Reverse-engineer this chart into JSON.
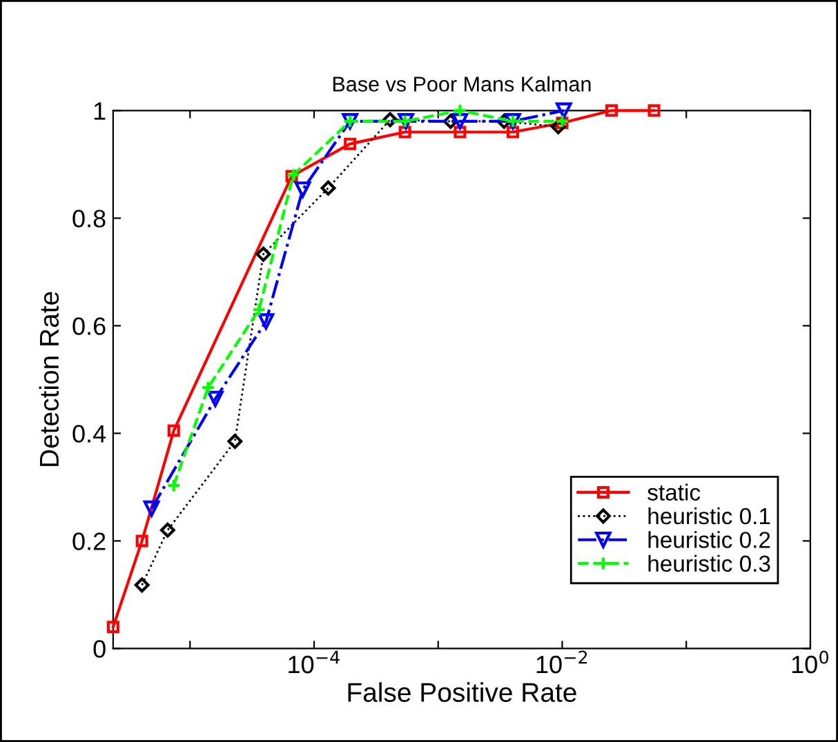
{
  "chart_data": {
    "type": "line",
    "title": "Base vs Poor Mans Kalman",
    "xlabel": "False Positive Rate",
    "ylabel": "Detection Rate",
    "log": "x",
    "xlim": [
      2.4e-06,
      1
    ],
    "xticks": [
      {
        "value": 1e-05,
        "label": null
      },
      {
        "value": 0.0001,
        "label": "10$^{−4}$"
      },
      {
        "value": 0.001,
        "label": null
      },
      {
        "value": 0.01,
        "label": "10$^{−2}$"
      },
      {
        "value": 0.1,
        "label": null
      },
      {
        "value": 1,
        "label": "10$^{0}$"
      }
    ],
    "ylim": [
      0,
      1
    ],
    "yticks": [
      0,
      0.2,
      0.4,
      0.6,
      0.8,
      1
    ],
    "grid": false,
    "legend": "bottom right",
    "series": [
      {
        "name": "static",
        "color": "#ff0000",
        "marker": "square",
        "line_style": "solid",
        "x": [
          2.4e-06,
          4.1e-06,
          7.4e-06,
          6.6e-05,
          0.000195,
          0.00054,
          0.0015,
          0.004,
          0.01,
          0.025,
          0.055
        ],
        "values": [
          0.04,
          0.2,
          0.405,
          0.878,
          0.938,
          0.96,
          0.96,
          0.96,
          0.977,
          1.0,
          1.0
        ]
      },
      {
        "name": "heuristic 0.1",
        "color": "#000000",
        "marker": "diamond",
        "line_style": "dotted",
        "x": [
          4.1e-06,
          6.6e-06,
          2.3e-05,
          3.9e-05,
          0.00013,
          0.00041,
          0.00126,
          0.0034,
          0.0093
        ],
        "values": [
          0.118,
          0.22,
          0.385,
          0.733,
          0.856,
          0.983,
          0.98,
          0.98,
          0.97
        ]
      },
      {
        "name": "heuristic 0.2",
        "color": "#0000ff",
        "marker": "triangle",
        "line_style": "dashdot",
        "x": [
          4.9e-06,
          1.6e-05,
          4.1e-05,
          8.1e-05,
          0.000195,
          0.00055,
          0.0015,
          0.004,
          0.0103
        ],
        "values": [
          0.26,
          0.464,
          0.608,
          0.853,
          0.98,
          0.98,
          0.98,
          0.98,
          1.0
        ]
      },
      {
        "name": "heuristic 0.3",
        "color": "#00ff00",
        "marker": "plus",
        "line_style": "dashed",
        "x": [
          7.4e-06,
          1.4e-05,
          3.6e-05,
          6.8e-05,
          0.000195,
          0.00054,
          0.0015,
          0.004,
          0.01
        ],
        "values": [
          0.303,
          0.485,
          0.63,
          0.88,
          0.98,
          0.98,
          1.0,
          0.98,
          0.98
        ]
      }
    ]
  }
}
